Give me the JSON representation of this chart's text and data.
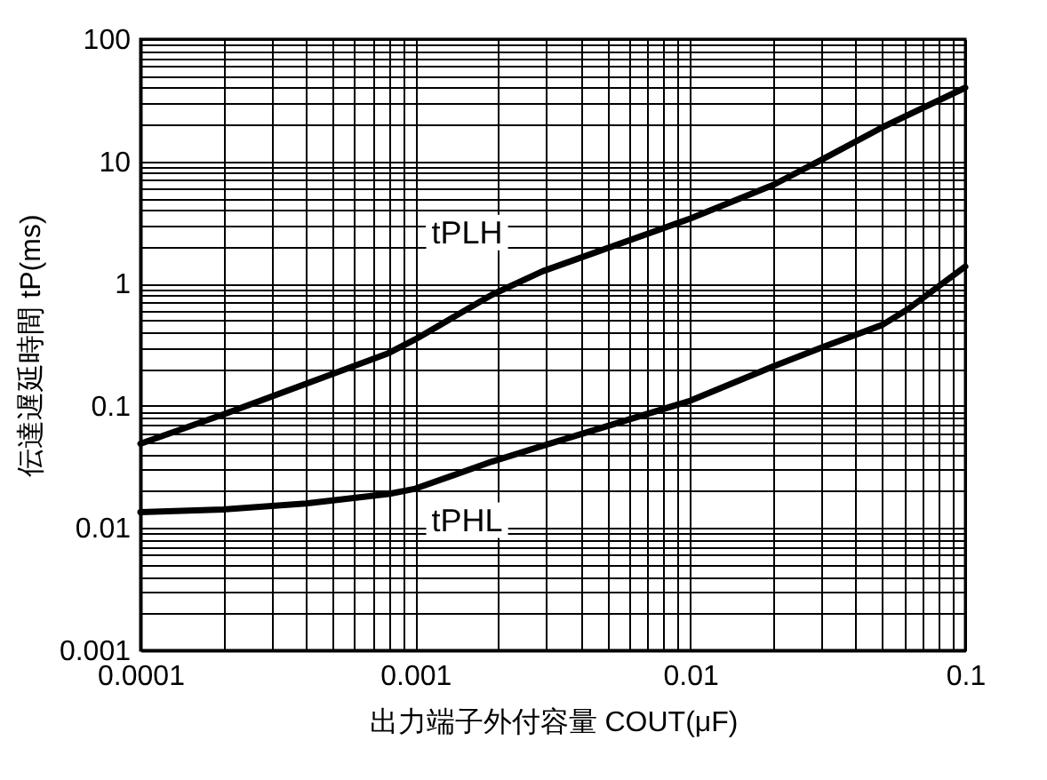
{
  "chart_data": {
    "type": "line",
    "xlabel": "出力端子外付容量 COUT(μF)",
    "ylabel": "伝達遅延時間 tP(ms)",
    "log": "xy",
    "grid": true,
    "marker": "none",
    "line_style": "solid",
    "xlim": [
      0.0001,
      0.1
    ],
    "ylim": [
      0.001,
      100
    ],
    "xticks": [
      0.0001,
      {
        "value": 0.0002,
        "label": null
      },
      {
        "value": 0.0003,
        "label": null
      },
      {
        "value": 0.0004,
        "label": null
      },
      {
        "value": 0.0005,
        "label": null
      },
      {
        "value": 0.0006,
        "label": null
      },
      {
        "value": 0.0007,
        "label": null
      },
      {
        "value": 0.0008,
        "label": null
      },
      {
        "value": 0.0009,
        "label": null
      },
      0.001,
      {
        "value": 0.002,
        "label": null
      },
      {
        "value": 0.003,
        "label": null
      },
      {
        "value": 0.004,
        "label": null
      },
      {
        "value": 0.005,
        "label": null
      },
      {
        "value": 0.006,
        "label": null
      },
      {
        "value": 0.007,
        "label": null
      },
      {
        "value": 0.008,
        "label": null
      },
      {
        "value": 0.009,
        "label": null
      },
      0.01,
      {
        "value": 0.02,
        "label": null
      },
      {
        "value": 0.03,
        "label": null
      },
      {
        "value": 0.04,
        "label": null
      },
      {
        "value": 0.05,
        "label": null
      },
      {
        "value": 0.06,
        "label": null
      },
      {
        "value": 0.07,
        "label": null
      },
      {
        "value": 0.08,
        "label": null
      },
      {
        "value": 0.09,
        "label": null
      },
      0.1
    ],
    "yticks": [
      0.001,
      {
        "value": 0.002,
        "label": null
      },
      {
        "value": 0.003,
        "label": null
      },
      {
        "value": 0.004,
        "label": null
      },
      {
        "value": 0.005,
        "label": null
      },
      {
        "value": 0.006,
        "label": null
      },
      {
        "value": 0.007,
        "label": null
      },
      {
        "value": 0.008,
        "label": null
      },
      {
        "value": 0.009,
        "label": null
      },
      0.01,
      {
        "value": 0.02,
        "label": null
      },
      {
        "value": 0.03,
        "label": null
      },
      {
        "value": 0.04,
        "label": null
      },
      {
        "value": 0.05,
        "label": null
      },
      {
        "value": 0.06,
        "label": null
      },
      {
        "value": 0.07,
        "label": null
      },
      {
        "value": 0.08,
        "label": null
      },
      {
        "value": 0.09,
        "label": null
      },
      0.1,
      {
        "value": 0.2,
        "label": null
      },
      {
        "value": 0.3,
        "label": null
      },
      {
        "value": 0.4,
        "label": null
      },
      {
        "value": 0.5,
        "label": null
      },
      {
        "value": 0.6,
        "label": null
      },
      {
        "value": 0.7,
        "label": null
      },
      {
        "value": 0.8,
        "label": null
      },
      {
        "value": 0.9,
        "label": null
      },
      1,
      {
        "value": 2,
        "label": null
      },
      {
        "value": 3,
        "label": null
      },
      {
        "value": 4,
        "label": null
      },
      {
        "value": 5,
        "label": null
      },
      {
        "value": 6,
        "label": null
      },
      {
        "value": 7,
        "label": null
      },
      {
        "value": 8,
        "label": null
      },
      {
        "value": 9,
        "label": null
      },
      10,
      {
        "value": 20,
        "label": null
      },
      {
        "value": 30,
        "label": null
      },
      {
        "value": 40,
        "label": null
      },
      {
        "value": 50,
        "label": null
      },
      {
        "value": 60,
        "label": null
      },
      {
        "value": 70,
        "label": null
      },
      {
        "value": 80,
        "label": null
      },
      {
        "value": 90,
        "label": null
      },
      100
    ],
    "series": [
      {
        "name": "tPLH",
        "color": "#000000",
        "x": [
          0.0001,
          0.0002,
          0.0008,
          0.001,
          0.0019,
          0.0029,
          0.01,
          0.02,
          0.03,
          0.05,
          0.1
        ],
        "values": [
          0.049,
          0.085,
          0.27,
          0.35,
          0.81,
          1.26,
          3.4,
          6.4,
          10.3,
          19,
          40
        ]
      },
      {
        "name": "tPHL",
        "color": "#000000",
        "x": [
          0.0001,
          0.0002,
          0.0004,
          0.0008,
          0.001,
          0.0019,
          0.0029,
          0.01,
          0.02,
          0.03,
          0.05,
          0.062,
          0.1
        ],
        "values": [
          0.0135,
          0.0142,
          0.0159,
          0.019,
          0.021,
          0.035,
          0.047,
          0.11,
          0.21,
          0.3,
          0.46,
          0.62,
          1.38
        ]
      }
    ]
  }
}
